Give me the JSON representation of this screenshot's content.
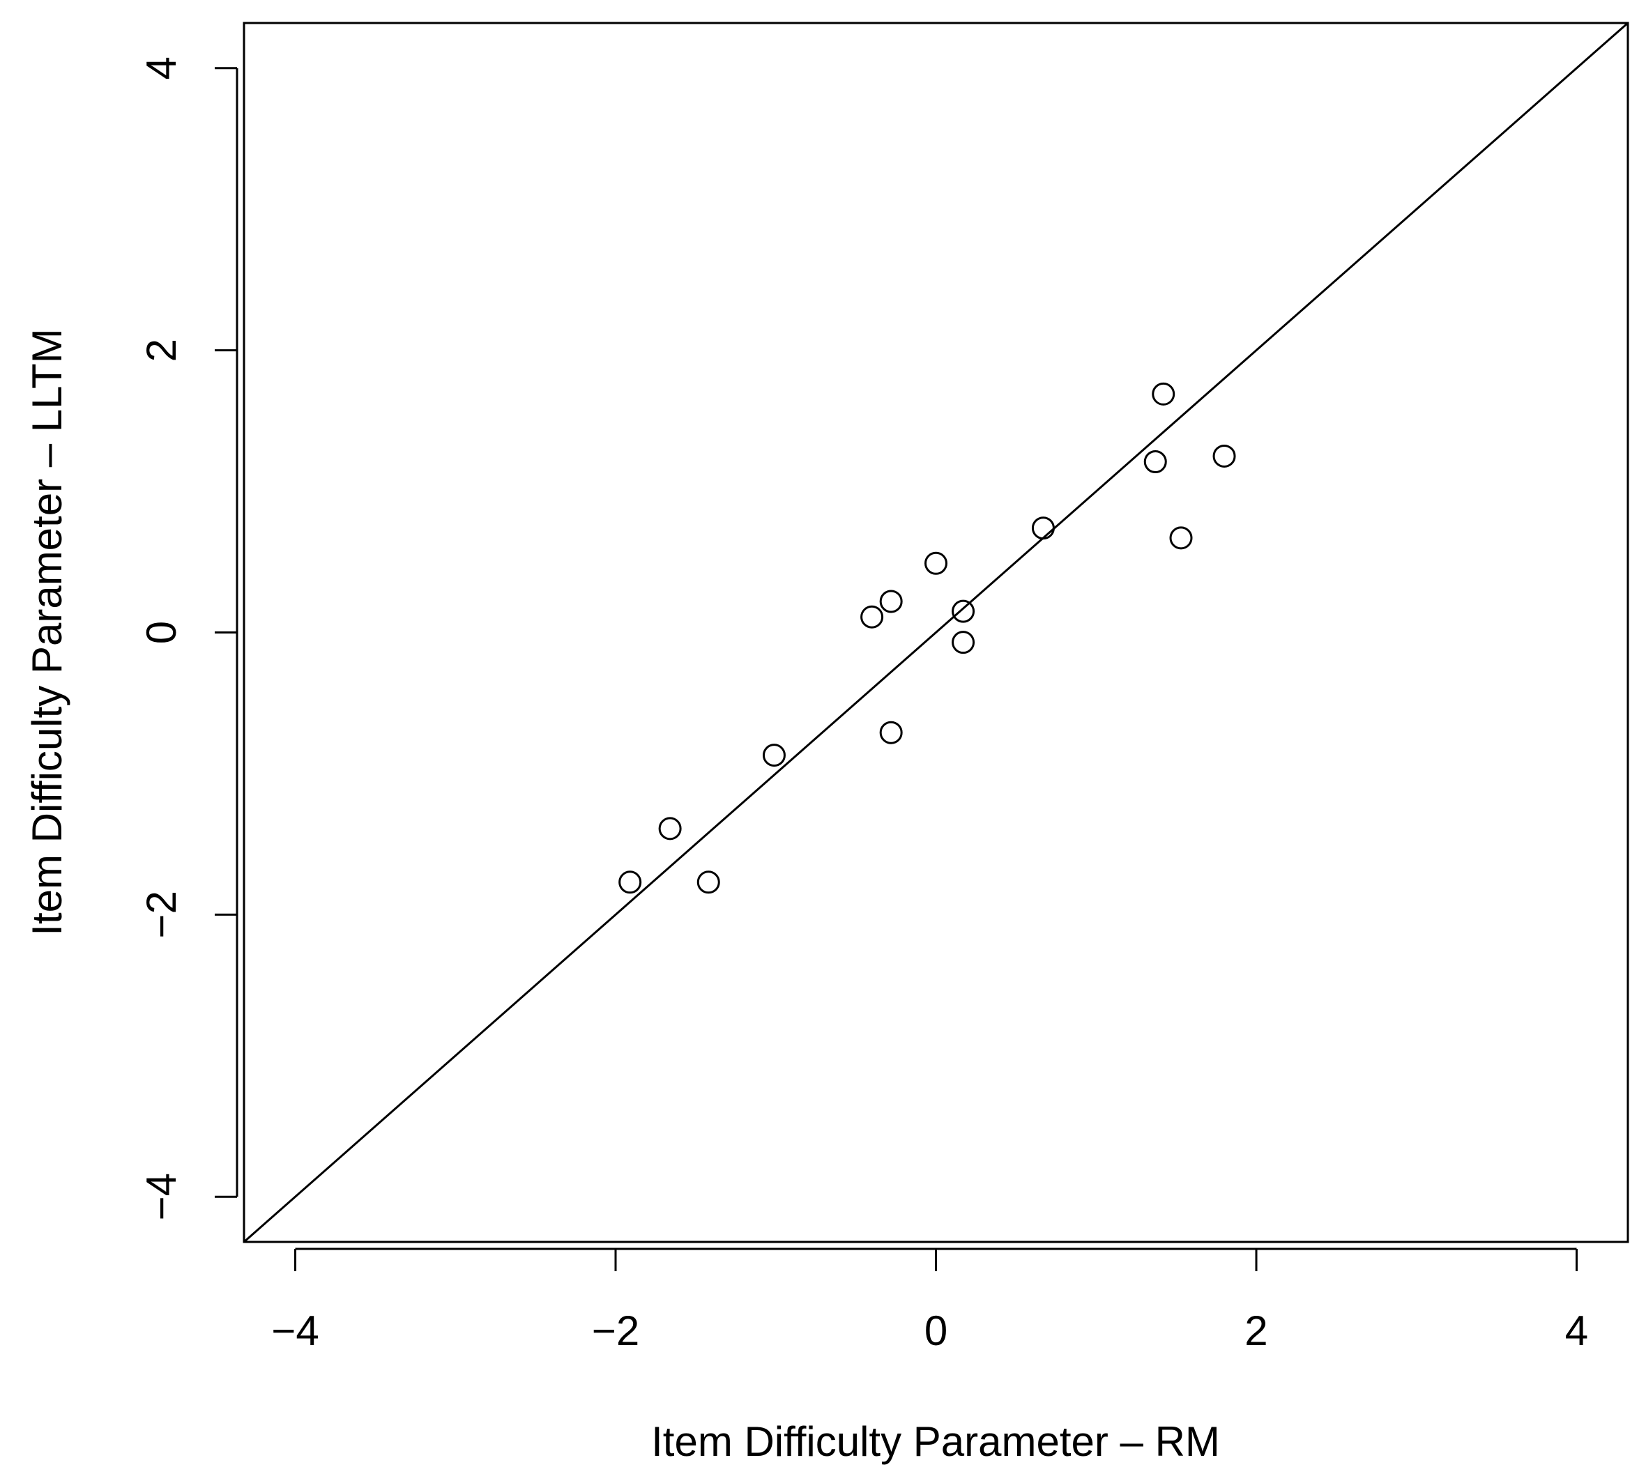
{
  "chart_data": {
    "type": "scatter",
    "title": "",
    "xlabel": "Item Difficulty Parameter – RM",
    "ylabel": "Item Difficulty Parameter – LLTM",
    "xlim": [
      -4.32,
      4.32
    ],
    "ylim": [
      -4.32,
      4.32
    ],
    "xticks": [
      -4,
      -2,
      0,
      2,
      4
    ],
    "yticks": [
      -4,
      -2,
      0,
      2,
      4
    ],
    "xtick_labels": [
      "−4",
      "−2",
      "0",
      "2",
      "4"
    ],
    "ytick_labels": [
      "−4",
      "−2",
      "0",
      "2",
      "4"
    ],
    "grid": false,
    "legend": "none",
    "reference_line": {
      "type": "identity",
      "slope": 1,
      "intercept": 0
    },
    "marker": "open-circle",
    "colors": {
      "points": "#000000",
      "line": "#000000",
      "axes": "#000000"
    },
    "points": [
      {
        "x": -1.91,
        "y": -1.77
      },
      {
        "x": -1.66,
        "y": -1.39
      },
      {
        "x": -1.42,
        "y": -1.77
      },
      {
        "x": -1.01,
        "y": -0.87
      },
      {
        "x": -0.4,
        "y": 0.11
      },
      {
        "x": -0.28,
        "y": 0.22
      },
      {
        "x": -0.28,
        "y": -0.71
      },
      {
        "x": 0.0,
        "y": 0.49
      },
      {
        "x": 0.17,
        "y": 0.15
      },
      {
        "x": 0.17,
        "y": -0.07
      },
      {
        "x": 0.67,
        "y": 0.74
      },
      {
        "x": 1.37,
        "y": 1.21
      },
      {
        "x": 1.42,
        "y": 1.69
      },
      {
        "x": 1.53,
        "y": 0.67
      },
      {
        "x": 1.8,
        "y": 1.25
      }
    ]
  }
}
